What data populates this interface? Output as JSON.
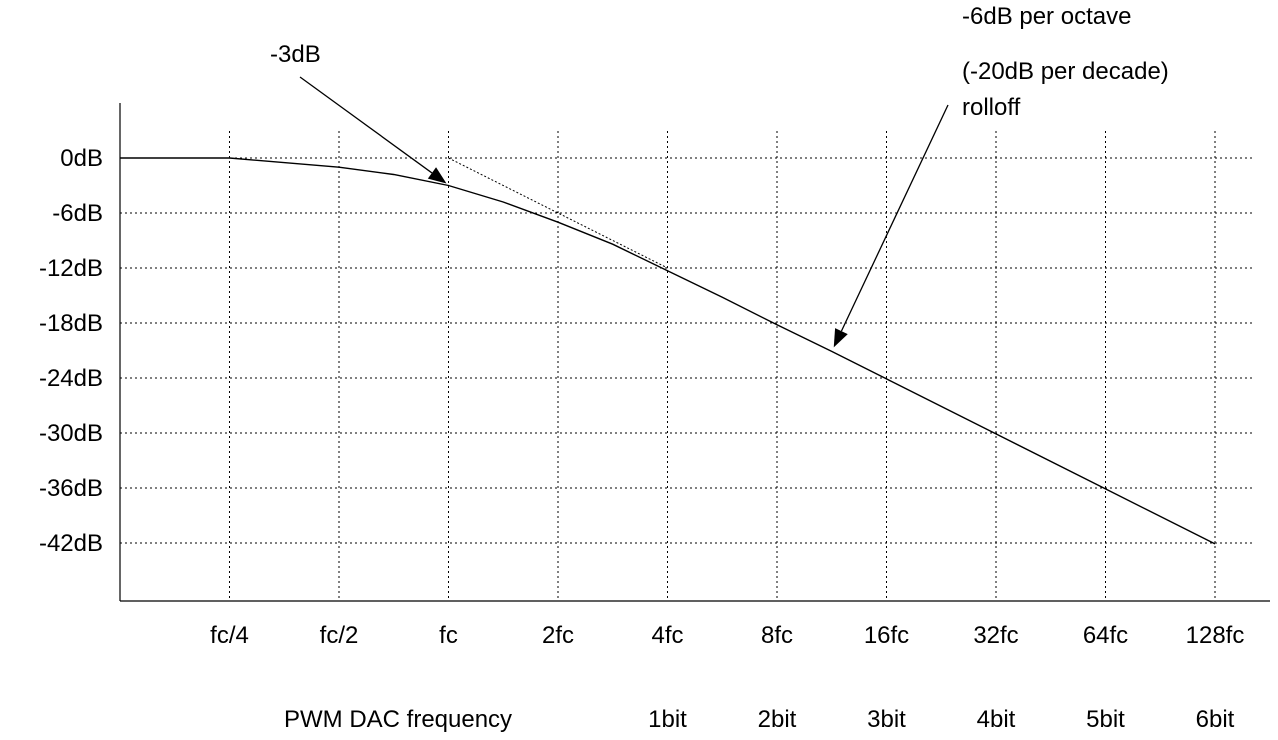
{
  "chart_data": {
    "type": "line",
    "title": "",
    "xlabel": "PWM DAC frequency",
    "ylabel": "",
    "x_scale": "log2",
    "x": [
      0.125,
      0.25,
      0.5,
      0.7071,
      1,
      1.4142,
      2,
      2.8284,
      4,
      5.6569,
      8,
      11.3137,
      16,
      32,
      64,
      128
    ],
    "x_ticks": [
      {
        "value": 0.25,
        "label": "fc/4",
        "sub_label": ""
      },
      {
        "value": 0.5,
        "label": "fc/2",
        "sub_label": ""
      },
      {
        "value": 1,
        "label": "fc",
        "sub_label": ""
      },
      {
        "value": 2,
        "label": "2fc",
        "sub_label": ""
      },
      {
        "value": 4,
        "label": "4fc",
        "sub_label": "1bit"
      },
      {
        "value": 8,
        "label": "8fc",
        "sub_label": "2bit"
      },
      {
        "value": 16,
        "label": "16fc",
        "sub_label": "3bit"
      },
      {
        "value": 32,
        "label": "32fc",
        "sub_label": "4bit"
      },
      {
        "value": 64,
        "label": "64fc",
        "sub_label": "5bit"
      },
      {
        "value": 128,
        "label": "128fc",
        "sub_label": "6bit"
      }
    ],
    "y_ticks": [
      {
        "value": 0,
        "label": "0dB"
      },
      {
        "value": -6,
        "label": "-6dB"
      },
      {
        "value": -12,
        "label": "-12dB"
      },
      {
        "value": -18,
        "label": "-18dB"
      },
      {
        "value": -24,
        "label": "-24dB"
      },
      {
        "value": -30,
        "label": "-30dB"
      },
      {
        "value": -36,
        "label": "-36dB"
      },
      {
        "value": -42,
        "label": "-42dB"
      }
    ],
    "xlim": [
      0.125,
      160
    ],
    "ylim": [
      -47.8,
      5
    ],
    "grid": true,
    "series": [
      {
        "name": "",
        "style": "solid",
        "x": [
          0.125,
          0.25,
          0.5,
          0.7071,
          1,
          1.4142,
          2,
          2.8284,
          4,
          5.6569,
          8,
          11.3137,
          16,
          32,
          64,
          128
        ],
        "values": [
          0,
          0,
          -1,
          -1.8,
          -3,
          -4.8,
          -7,
          -9.4,
          -12.3,
          -15.2,
          -18.2,
          -21.1,
          -24.1,
          -30.1,
          -36.1,
          -42.1
        ]
      },
      {
        "name": "",
        "style": "dotted",
        "x": [
          1,
          4
        ],
        "values": [
          0,
          -12
        ]
      }
    ],
    "annotations": [
      {
        "text": "-3dB",
        "target": {
          "x": 1,
          "y": -3
        }
      },
      {
        "text": "-6dB per octave",
        "target": {
          "x": 11.3137,
          "y": -21.1
        }
      },
      {
        "text": "(-20dB per decade)",
        "target": null
      },
      {
        "text": "rolloff",
        "target": null
      }
    ]
  }
}
